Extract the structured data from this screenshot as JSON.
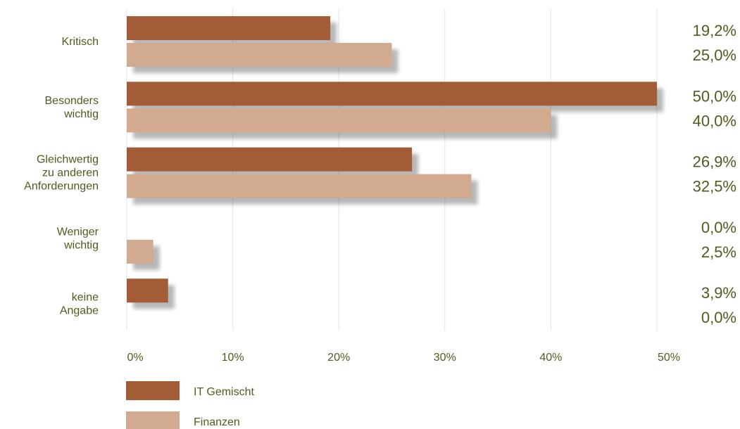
{
  "chart_data": {
    "type": "bar",
    "orientation": "horizontal",
    "categories": [
      [
        "Kritisch"
      ],
      [
        "Besonders",
        "wichtig"
      ],
      [
        "Gleichwertig",
        "zu anderen",
        "Anforderungen"
      ],
      [
        "Weniger",
        "wichtig"
      ],
      [
        "keine",
        "Angabe"
      ]
    ],
    "series": [
      {
        "name": "IT Gemischt",
        "color": "#a35d36",
        "values": [
          19.2,
          50.0,
          26.9,
          0.0,
          3.9
        ],
        "labels": [
          "19,2%",
          "50,0%",
          "26,9%",
          "0,0%",
          "3,9%"
        ]
      },
      {
        "name": "Finanzen",
        "color": "#d1aa8f",
        "values": [
          25.0,
          40.0,
          32.5,
          2.5,
          0.0
        ],
        "labels": [
          "25,0%",
          "40,0%",
          "32,5%",
          "2,5%",
          "0,0%"
        ]
      }
    ],
    "xlim": [
      0,
      50
    ],
    "xticks": [
      "0%",
      "10%",
      "20%",
      "30%",
      "40%",
      "50%"
    ],
    "grid": true,
    "legend_position": "bottom-left"
  }
}
